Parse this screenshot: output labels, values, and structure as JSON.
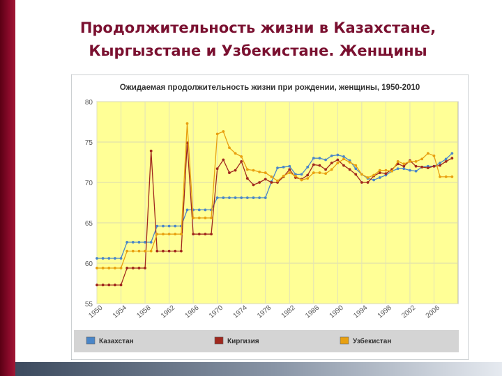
{
  "slide": {
    "title_line1": "Продолжительность жизни в Казахстане,",
    "title_line2": "Кыргызстане и Узбекистане. Женщины"
  },
  "colors": {
    "title": "#7a1030",
    "plot_bg": "#ffff96",
    "panel_bg": "#ffffff",
    "legend_bg": "#d4d4d4",
    "kazakhstan": "#4a86c8",
    "kyrgyzstan": "#a0281e",
    "uzbekistan": "#e8a010"
  },
  "chart_data": {
    "type": "line",
    "title": "Ожидаемая продолжительность жизни при рождении, женщины, 1950-2010",
    "ylim": [
      55,
      80
    ],
    "yticks": [
      55,
      60,
      65,
      70,
      75,
      80
    ],
    "xlim": [
      1950,
      2010
    ],
    "xticks": [
      "1950",
      "1954",
      "1958",
      "1962",
      "1966",
      "1970",
      "1974",
      "1978",
      "1982",
      "1986",
      "1990",
      "1994",
      "1998",
      "2002",
      "2006"
    ],
    "grid": true,
    "legend_position": "bottom",
    "x": [
      1950,
      1951,
      1952,
      1953,
      1954,
      1955,
      1956,
      1957,
      1958,
      1959,
      1960,
      1961,
      1962,
      1963,
      1964,
      1965,
      1966,
      1967,
      1968,
      1969,
      1970,
      1971,
      1972,
      1973,
      1974,
      1975,
      1976,
      1977,
      1978,
      1979,
      1980,
      1981,
      1982,
      1983,
      1984,
      1985,
      1986,
      1987,
      1988,
      1989,
      1990,
      1991,
      1992,
      1993,
      1994,
      1995,
      1996,
      1997,
      1998,
      1999,
      2000,
      2001,
      2002,
      2003,
      2004,
      2005,
      2006,
      2007,
      2008,
      2009
    ],
    "series": [
      {
        "name": "Казахстан",
        "color": "#4a86c8",
        "values": [
          60.6,
          60.6,
          60.6,
          60.6,
          60.6,
          62.6,
          62.6,
          62.6,
          62.6,
          62.6,
          64.6,
          64.6,
          64.6,
          64.6,
          64.6,
          66.6,
          66.6,
          66.6,
          66.6,
          66.6,
          68.1,
          68.1,
          68.1,
          68.1,
          68.1,
          68.1,
          68.1,
          68.1,
          68.1,
          70.1,
          71.8,
          71.9,
          72.0,
          71.0,
          71.0,
          71.9,
          73.0,
          73.0,
          72.8,
          73.3,
          73.4,
          73.2,
          72.7,
          71.7,
          71.0,
          70.5,
          70.3,
          70.6,
          70.9,
          71.4,
          71.7,
          71.7,
          71.5,
          71.4,
          71.9,
          72.0,
          72.0,
          72.4,
          72.9,
          73.6
        ]
      },
      {
        "name": "Киргизия",
        "color": "#a0281e",
        "values": [
          57.3,
          57.3,
          57.3,
          57.3,
          57.3,
          59.4,
          59.4,
          59.4,
          59.4,
          73.9,
          61.5,
          61.5,
          61.5,
          61.5,
          61.5,
          74.9,
          63.6,
          63.6,
          63.6,
          63.6,
          71.7,
          72.8,
          71.2,
          71.5,
          72.6,
          70.5,
          69.7,
          70.0,
          70.4,
          70.0,
          70.0,
          70.7,
          71.6,
          70.6,
          70.4,
          70.9,
          72.2,
          72.1,
          71.6,
          72.4,
          72.8,
          72.1,
          71.6,
          71.0,
          70.0,
          70.0,
          70.8,
          71.2,
          71.1,
          71.6,
          72.3,
          72.0,
          72.7,
          72.0,
          71.9,
          71.8,
          72.0,
          72.1,
          72.6,
          73.0
        ]
      },
      {
        "name": "Узбекистан",
        "color": "#e8a010",
        "values": [
          59.4,
          59.4,
          59.4,
          59.4,
          59.4,
          61.5,
          61.5,
          61.5,
          61.5,
          61.5,
          63.6,
          63.6,
          63.6,
          63.6,
          63.6,
          77.3,
          65.6,
          65.6,
          65.6,
          65.6,
          76.0,
          76.3,
          74.3,
          73.6,
          73.2,
          71.6,
          71.5,
          71.3,
          71.2,
          70.7,
          70.2,
          70.8,
          71.2,
          70.8,
          70.3,
          70.5,
          71.2,
          71.2,
          71.1,
          71.6,
          72.4,
          72.9,
          72.5,
          72.1,
          71.0,
          70.6,
          70.9,
          71.5,
          71.5,
          71.4,
          72.6,
          72.3,
          72.6,
          72.6,
          72.9,
          73.6,
          73.3,
          70.7,
          70.7,
          70.7
        ]
      }
    ]
  }
}
